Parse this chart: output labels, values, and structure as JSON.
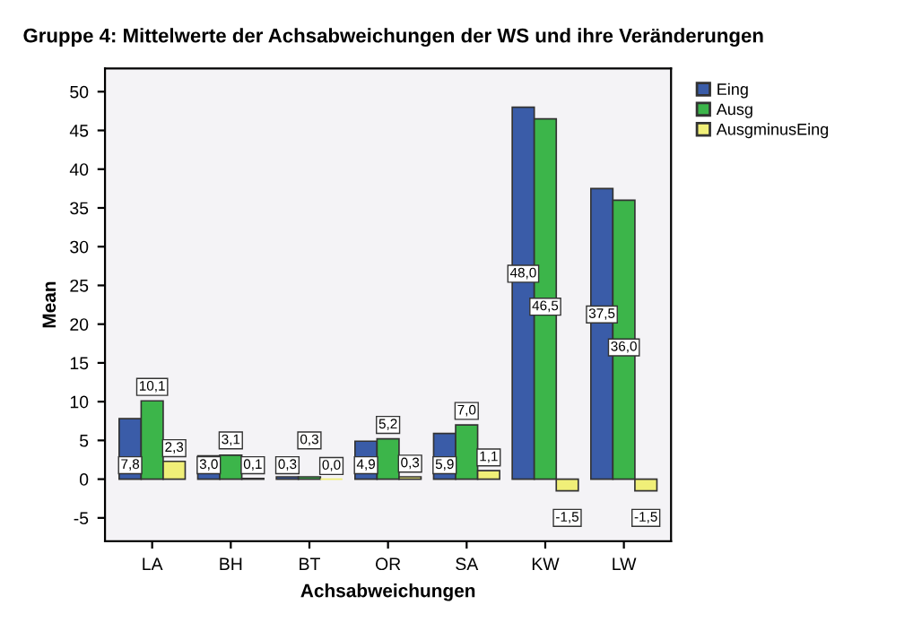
{
  "chart_data": {
    "type": "bar",
    "title": "Gruppe 4: Mittelwerte der Achsabweichungen der WS und ihre Veränderungen",
    "xlabel": "Achsabweichungen",
    "ylabel": "Mean",
    "categories": [
      "LA",
      "BH",
      "BT",
      "OR",
      "SA",
      "KW",
      "LW"
    ],
    "series": [
      {
        "name": "Eing",
        "color": "#3a5ca8",
        "values": [
          7.8,
          3.0,
          0.3,
          4.9,
          5.9,
          48.0,
          37.5
        ],
        "value_labels": [
          "7,8",
          "3,0",
          "0,3",
          "4,9",
          "5,9",
          "48,0",
          "37,5"
        ]
      },
      {
        "name": "Ausg",
        "color": "#3cb54a",
        "values": [
          10.1,
          3.1,
          0.3,
          5.2,
          7.0,
          46.5,
          36.0
        ],
        "value_labels": [
          "10,1",
          "3,1",
          "0,3",
          "5,2",
          "7,0",
          "46,5",
          "36,0"
        ]
      },
      {
        "name": "AusgminusEing",
        "color": "#f0ef78",
        "values": [
          2.3,
          0.1,
          0.0,
          0.3,
          1.1,
          -1.5,
          -1.5
        ],
        "value_labels": [
          "2,3",
          "0,1",
          "0,0",
          "0,3",
          "1,1",
          "-1,5",
          "-1,5"
        ]
      }
    ],
    "ylim": [
      -8,
      53
    ],
    "yticks": [
      -5,
      0,
      5,
      10,
      15,
      20,
      25,
      30,
      35,
      40,
      45,
      50
    ],
    "legend": "top right",
    "grid": false
  }
}
